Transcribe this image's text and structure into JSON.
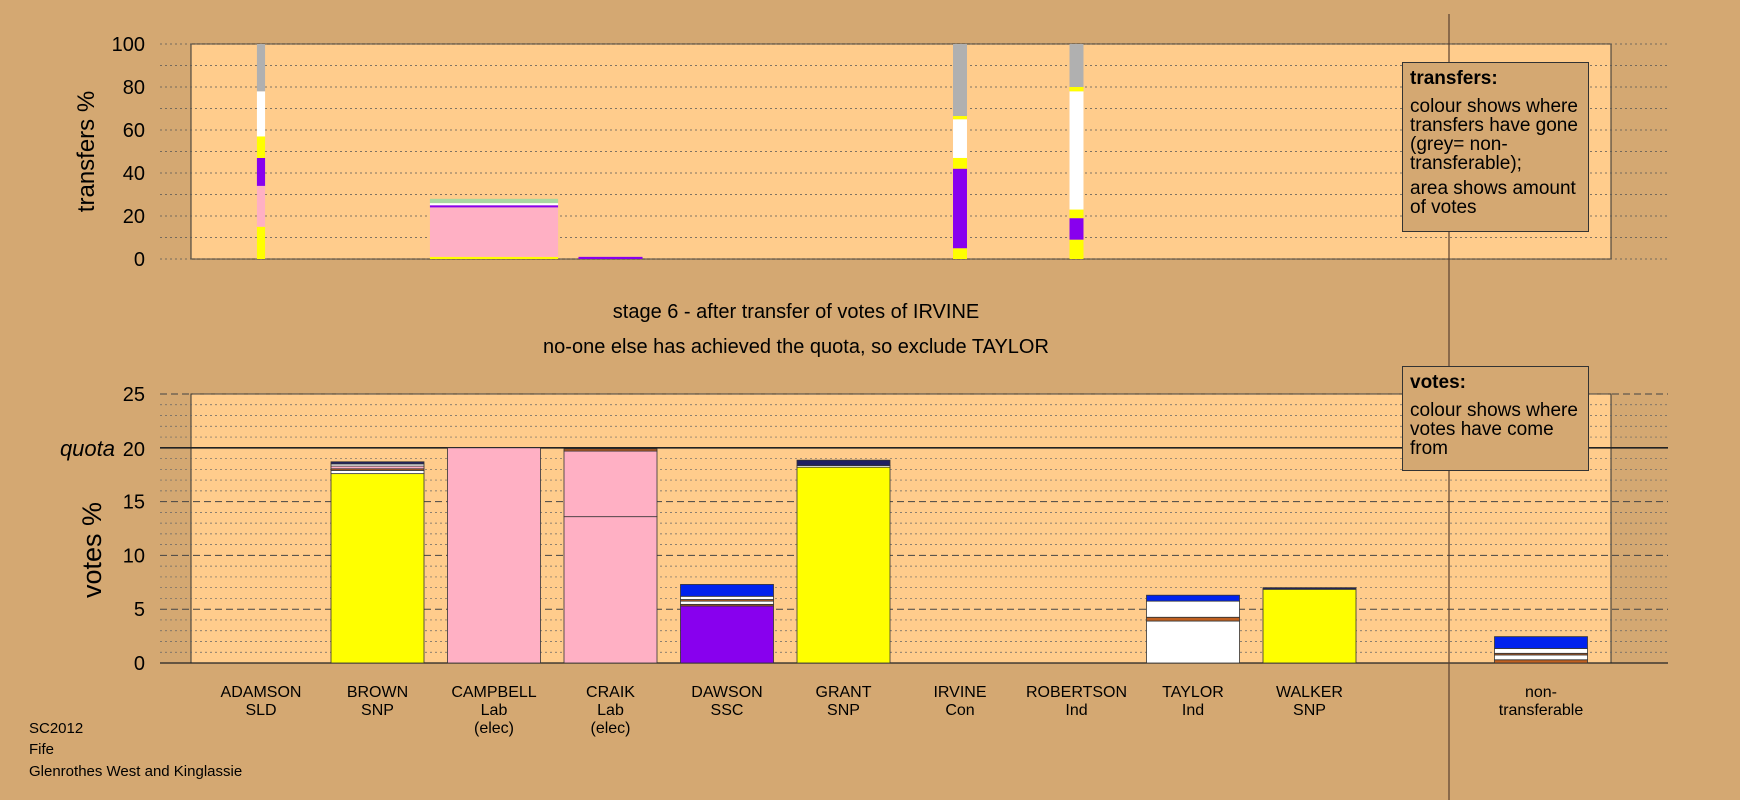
{
  "footer": {
    "election": "SC2012",
    "council": "Fife",
    "ward": "Glenrothes West and Kinglassie"
  },
  "stage_title": "stage 6 - after transfer of votes of IRVINE",
  "stage_subtitle": "no-one else has achieved the quota, so exclude TAYLOR",
  "legend_transfers": {
    "title": "transfers:",
    "p1": "colour shows where transfers have gone (grey= non-transferable);",
    "p2": "area shows amount of votes"
  },
  "legend_votes": {
    "title": "votes:",
    "p1": "colour shows where votes have come from"
  },
  "colors": {
    "yellow": "#ffff00",
    "pink": "#ffb0c4",
    "purple": "#8800ee",
    "white": "#ffffff",
    "grey": "#b0b0b0",
    "blue": "#0022ee",
    "brown": "#c06020",
    "navy": "#202060",
    "lightgreen": "#a8d8a0",
    "plot_bg": "#ffcc8c",
    "page_bg": "#d4a872"
  },
  "chart_data": [
    {
      "type": "bar",
      "ylabel": "transfers %",
      "ylim": [
        0,
        100
      ],
      "yticks": [
        0,
        20,
        40,
        60,
        80,
        100
      ],
      "grid": true,
      "bars": [
        {
          "x": 0.5,
          "width": 0.07,
          "segments": [
            [
              "yellow",
              15
            ],
            [
              "pink",
              19
            ],
            [
              "purple",
              13
            ],
            [
              "yellow",
              10
            ],
            [
              "white",
              21
            ],
            [
              "grey",
              22
            ]
          ]
        },
        {
          "x": 2.5,
          "width": 1.1,
          "segments": [
            [
              "yellow",
              1
            ],
            [
              "pink",
              23
            ],
            [
              "purple",
              1
            ],
            [
              "white",
              1
            ],
            [
              "lightgreen",
              2
            ]
          ]
        },
        {
          "x": 3.5,
          "width": 0.55,
          "segments": [
            [
              "purple",
              1
            ]
          ]
        },
        {
          "x": 6.5,
          "width": 0.12,
          "segments": [
            [
              "yellow",
              5
            ],
            [
              "purple",
              37
            ],
            [
              "yellow",
              5
            ],
            [
              "white",
              18
            ],
            [
              "yellow",
              1.5
            ],
            [
              "grey",
              33.5
            ]
          ]
        },
        {
          "x": 7.5,
          "width": 0.12,
          "segments": [
            [
              "yellow",
              9
            ],
            [
              "purple",
              10
            ],
            [
              "yellow",
              4
            ],
            [
              "white",
              55
            ],
            [
              "yellow",
              2
            ],
            [
              "grey",
              20
            ]
          ]
        }
      ]
    },
    {
      "type": "bar",
      "ylabel": "votes %",
      "ylim": [
        0,
        25
      ],
      "yticks": [
        0,
        5,
        10,
        15,
        20,
        25
      ],
      "quota": 20,
      "quota_label": "quota",
      "grid": true,
      "categories": [
        {
          "name": "ADAMSON",
          "party": "SLD",
          "note": ""
        },
        {
          "name": "BROWN",
          "party": "SNP",
          "note": ""
        },
        {
          "name": "CAMPBELL",
          "party": "Lab",
          "note": "(elec)"
        },
        {
          "name": "CRAIK",
          "party": "Lab",
          "note": "(elec)"
        },
        {
          "name": "DAWSON",
          "party": "SSC",
          "note": ""
        },
        {
          "name": "GRANT",
          "party": "SNP",
          "note": ""
        },
        {
          "name": "IRVINE",
          "party": "Con",
          "note": ""
        },
        {
          "name": "ROBERTSON",
          "party": "Ind",
          "note": ""
        },
        {
          "name": "TAYLOR",
          "party": "Ind",
          "note": ""
        },
        {
          "name": "WALKER",
          "party": "SNP",
          "note": ""
        }
      ],
      "nontransferable_label": [
        "non-",
        "transferable"
      ],
      "stacks": [
        [],
        [
          [
            "yellow",
            17.6
          ],
          [
            "white",
            0.3
          ],
          [
            "brown",
            0.15
          ],
          [
            "pink",
            0.25
          ],
          [
            "white",
            0.2
          ],
          [
            "navy",
            0.2
          ]
        ],
        [
          [
            "pink",
            20.0
          ]
        ],
        [
          [
            "pink",
            13.6
          ],
          [
            "pink",
            6.1
          ],
          [
            "brown",
            0.2
          ]
        ],
        [
          [
            "purple",
            5.3
          ],
          [
            "brown",
            0.15
          ],
          [
            "white",
            0.3
          ],
          [
            "brown",
            0.15
          ],
          [
            "white",
            0.3
          ],
          [
            "blue",
            1.1
          ]
        ],
        [
          [
            "yellow",
            18.2
          ],
          [
            "white",
            0.15
          ],
          [
            "navy",
            0.5
          ]
        ],
        [],
        [],
        [
          [
            "white",
            3.9
          ],
          [
            "brown",
            0.35
          ],
          [
            "white",
            1.5
          ],
          [
            "blue",
            0.55
          ]
        ],
        [
          [
            "yellow",
            6.85
          ],
          [
            "navy",
            0.15
          ]
        ],
        [
          [
            "brown",
            0.3
          ],
          [
            "white",
            0.45
          ],
          [
            "brown",
            0.15
          ],
          [
            "white",
            0.45
          ],
          [
            "blue",
            1.1
          ]
        ]
      ]
    }
  ]
}
